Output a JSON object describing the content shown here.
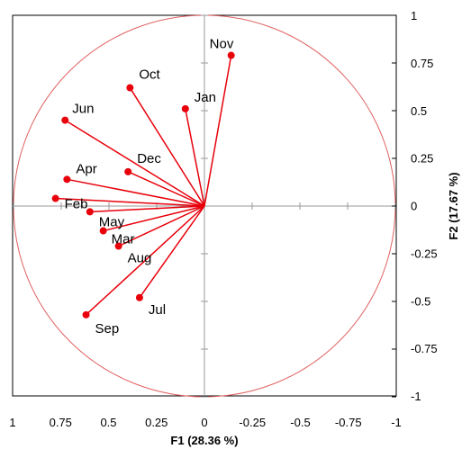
{
  "chart_data": {
    "type": "scatter",
    "title": "",
    "xlabel": "F1 (28.36 %)",
    "ylabel": "F2 (17.67 %)",
    "xlim": [
      1,
      -1
    ],
    "ylim": [
      -1,
      1
    ],
    "x_reversed": true,
    "x_ticks": [
      "1",
      "0.75",
      "0.5",
      "0.25",
      "0",
      "-0.25",
      "-0.5",
      "-0.75",
      "-1"
    ],
    "y_ticks": [
      "1",
      "0.75",
      "0.5",
      "0.25",
      "0",
      "-0.25",
      "-0.5",
      "-0.75",
      "-1"
    ],
    "grid": false,
    "legend": "none",
    "correlation_circle": true,
    "colors": {
      "vectors": "#e8000b",
      "circle": "#e06060",
      "axes": "#000000",
      "inner_axes": "#999999"
    },
    "points": [
      {
        "label": "Nov",
        "x": -0.14,
        "y": 0.79
      },
      {
        "label": "Oct",
        "x": 0.39,
        "y": 0.62
      },
      {
        "label": "Jan",
        "x": 0.1,
        "y": 0.51
      },
      {
        "label": "Jun",
        "x": 0.73,
        "y": 0.45
      },
      {
        "label": "Dec",
        "x": 0.4,
        "y": 0.18
      },
      {
        "label": "Apr",
        "x": 0.72,
        "y": 0.14
      },
      {
        "label": "Feb",
        "x": 0.78,
        "y": 0.04
      },
      {
        "label": "May",
        "x": 0.6,
        "y": -0.03
      },
      {
        "label": "Mar",
        "x": 0.53,
        "y": -0.13
      },
      {
        "label": "Aug",
        "x": 0.45,
        "y": -0.21
      },
      {
        "label": "Jul",
        "x": 0.34,
        "y": -0.48
      },
      {
        "label": "Sep",
        "x": 0.62,
        "y": -0.57
      }
    ]
  }
}
